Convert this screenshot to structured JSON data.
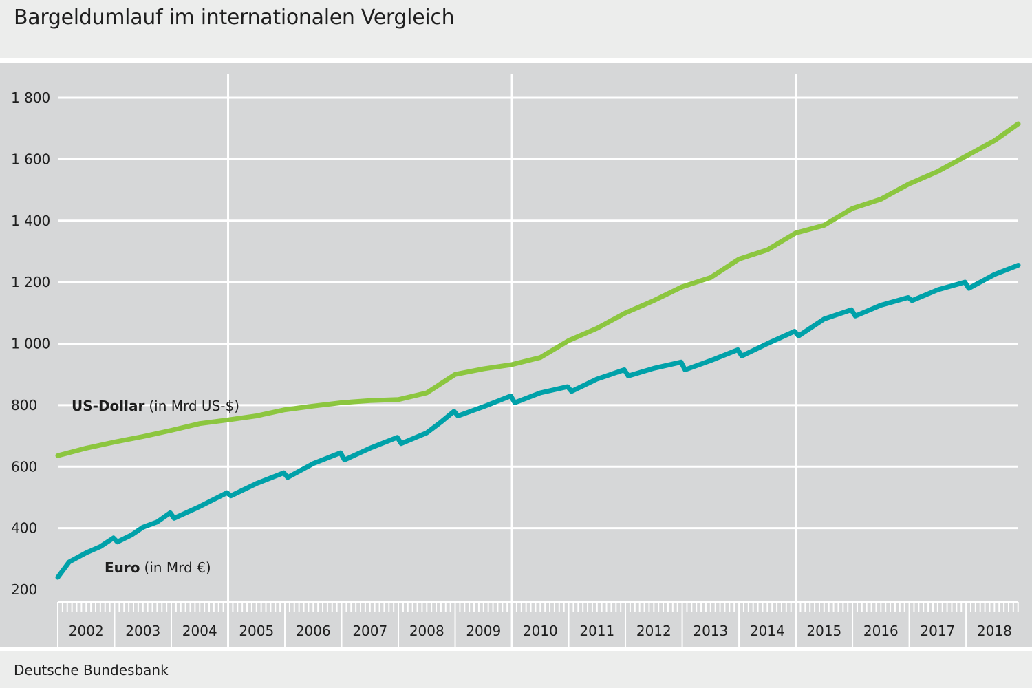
{
  "title": "Bargeldumlauf im internationalen Vergleich",
  "source": "Deutsche Bundesbank",
  "colors": {
    "background": "#ecedec",
    "plot_background": "#d6d7d8",
    "grid": "#ffffff",
    "usd": "#8cc63f",
    "euro": "#00a1a9"
  },
  "chart_data": {
    "type": "line",
    "title": "Bargeldumlauf im internationalen Vergleich",
    "xlabel": "",
    "ylabel": "",
    "ylim": [
      200,
      1800
    ],
    "yticks": [
      200,
      400,
      600,
      800,
      1000,
      1200,
      1400,
      1600,
      1800
    ],
    "ytick_labels": [
      "200",
      "400",
      "600",
      "800",
      "1 000",
      "1 200",
      "1 400",
      "1 600",
      "1 800"
    ],
    "xlim": [
      2002.0,
      2018.92
    ],
    "x_categories": [
      "2002",
      "2003",
      "2004",
      "2005",
      "2006",
      "2007",
      "2008",
      "2009",
      "2010",
      "2011",
      "2012",
      "2013",
      "2014",
      "2015",
      "2016",
      "2017",
      "2018"
    ],
    "vertical_grid_at": [
      2005,
      2010,
      2015
    ],
    "grid": true,
    "series": [
      {
        "name": "US-Dollar",
        "unit_label": "(in Mrd US-$)",
        "x": [
          2002.0,
          2002.5,
          2003.0,
          2003.5,
          2004.0,
          2004.5,
          2005.0,
          2005.5,
          2006.0,
          2006.5,
          2007.0,
          2007.5,
          2008.0,
          2008.5,
          2009.0,
          2009.5,
          2010.0,
          2010.5,
          2011.0,
          2011.5,
          2012.0,
          2012.5,
          2013.0,
          2013.5,
          2014.0,
          2014.5,
          2015.0,
          2015.5,
          2016.0,
          2016.5,
          2017.0,
          2017.5,
          2018.0,
          2018.5,
          2018.92
        ],
        "values": [
          636,
          660,
          680,
          698,
          718,
          740,
          752,
          765,
          785,
          797,
          808,
          815,
          818,
          840,
          900,
          918,
          932,
          955,
          1010,
          1050,
          1100,
          1140,
          1185,
          1215,
          1275,
          1305,
          1360,
          1385,
          1440,
          1470,
          1520,
          1560,
          1610,
          1660,
          1715
        ]
      },
      {
        "name": "Euro",
        "unit_label": "(in Mrd €)",
        "x": [
          2002.0,
          2002.2,
          2002.5,
          2002.75,
          2002.98,
          2003.05,
          2003.3,
          2003.5,
          2003.75,
          2003.98,
          2004.05,
          2004.5,
          2004.98,
          2005.05,
          2005.5,
          2005.98,
          2006.05,
          2006.5,
          2006.98,
          2007.05,
          2007.5,
          2007.98,
          2008.05,
          2008.5,
          2008.75,
          2008.98,
          2009.05,
          2009.5,
          2009.98,
          2010.05,
          2010.5,
          2010.98,
          2011.05,
          2011.5,
          2011.98,
          2012.05,
          2012.5,
          2012.98,
          2013.05,
          2013.5,
          2013.98,
          2014.05,
          2014.5,
          2014.98,
          2015.05,
          2015.5,
          2015.98,
          2016.05,
          2016.5,
          2016.98,
          2017.05,
          2017.5,
          2017.98,
          2018.05,
          2018.5,
          2018.92
        ],
        "values": [
          240,
          290,
          320,
          340,
          368,
          355,
          378,
          403,
          420,
          450,
          432,
          470,
          515,
          505,
          545,
          580,
          565,
          610,
          645,
          622,
          660,
          695,
          675,
          710,
          745,
          780,
          765,
          795,
          830,
          808,
          840,
          860,
          845,
          885,
          915,
          895,
          920,
          940,
          915,
          945,
          980,
          960,
          1000,
          1040,
          1025,
          1080,
          1110,
          1090,
          1125,
          1150,
          1140,
          1175,
          1200,
          1180,
          1225,
          1255
        ]
      }
    ]
  }
}
